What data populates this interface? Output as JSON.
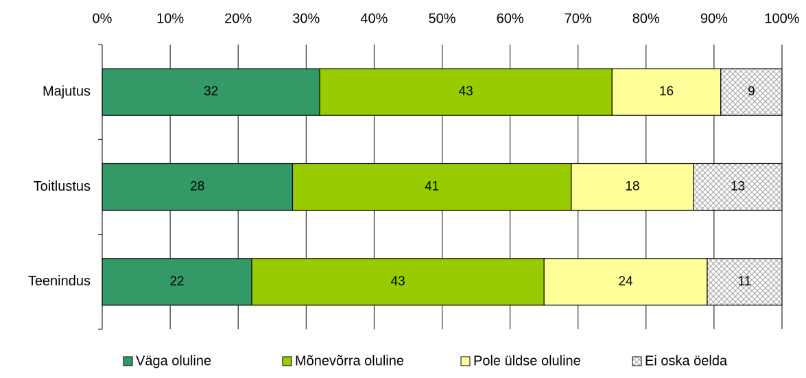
{
  "chart_data": {
    "type": "stacked-bar-horizontal",
    "categories": [
      "Majutus",
      "Toitlustus",
      "Teenindus"
    ],
    "series": [
      {
        "name": "Väga oluline",
        "color": "#339966",
        "values": [
          32,
          28,
          22
        ]
      },
      {
        "name": "Mõnevõrra oluline",
        "color": "#99cc00",
        "values": [
          43,
          41,
          43
        ]
      },
      {
        "name": "Pole üldse oluline",
        "color": "#ffff99",
        "values": [
          16,
          18,
          24
        ]
      },
      {
        "name": "Ei oska öelda",
        "color": "#c0c0c0",
        "pattern": "crosshatch",
        "values": [
          9,
          13,
          11
        ]
      }
    ],
    "xlim": [
      0,
      100
    ],
    "xticks": [
      {
        "value": 0,
        "label": "0%"
      },
      {
        "value": 10,
        "label": "10%"
      },
      {
        "value": 20,
        "label": "20%"
      },
      {
        "value": 30,
        "label": "30%"
      },
      {
        "value": 40,
        "label": "40%"
      },
      {
        "value": 50,
        "label": "50%"
      },
      {
        "value": 60,
        "label": "60%"
      },
      {
        "value": 70,
        "label": "70%"
      },
      {
        "value": 80,
        "label": "80%"
      },
      {
        "value": 90,
        "label": "90%"
      },
      {
        "value": 100,
        "label": "100%"
      }
    ],
    "grid": true,
    "legend": "bottom"
  }
}
